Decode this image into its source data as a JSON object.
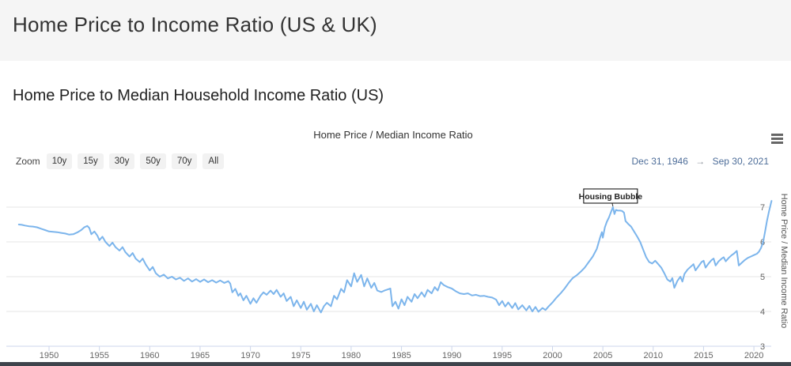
{
  "page": {
    "title": "Home Price to Income Ratio (US & UK)",
    "section_heading": "Home Price to Median Household Income Ratio (US)"
  },
  "chart": {
    "title": "Home Price / Median Income Ratio",
    "range_selector": {
      "zoom_label": "Zoom",
      "buttons": [
        "10y",
        "15y",
        "30y",
        "50y",
        "70y",
        "All"
      ],
      "from": "Dec 31, 1946",
      "arrow": "→",
      "to": "Sep 30, 2021"
    }
  },
  "colors": {
    "line": "#7cb5ec",
    "gridline": "#e6e6e6",
    "axis_line": "#ccd6eb",
    "tick_label": "#666666",
    "date_text": "#4d6d99",
    "header_band": "#f5f5f5",
    "bottom_bar": "#3e434b"
  },
  "chart_data": {
    "type": "line",
    "title": "Home Price / Median Income Ratio",
    "xlabel": "",
    "ylabel": "Home Price / Median Income Ratio",
    "legend": "none",
    "grid": "horizontal",
    "x_ticks": [
      1950,
      1955,
      1960,
      1965,
      1970,
      1975,
      1980,
      1985,
      1990,
      1995,
      2000,
      2005,
      2010,
      2015,
      2020
    ],
    "y_ticks": [
      3,
      4,
      5,
      6,
      7
    ],
    "xlim": [
      1946.5,
      2022.3
    ],
    "ylim": [
      2.9,
      7.7
    ],
    "annotations": [
      {
        "label": "Housing Bubble",
        "x": 2006.0,
        "y": 7.0
      }
    ],
    "series": [
      {
        "name": "Home Price / Median Income Ratio",
        "points": [
          [
            1947.0,
            6.5
          ],
          [
            1947.3,
            6.49
          ],
          [
            1947.6,
            6.47
          ],
          [
            1948.0,
            6.45
          ],
          [
            1948.4,
            6.44
          ],
          [
            1948.8,
            6.42
          ],
          [
            1949.2,
            6.38
          ],
          [
            1949.6,
            6.34
          ],
          [
            1950.0,
            6.3
          ],
          [
            1950.4,
            6.29
          ],
          [
            1950.8,
            6.28
          ],
          [
            1951.2,
            6.26
          ],
          [
            1951.6,
            6.24
          ],
          [
            1952.0,
            6.21
          ],
          [
            1952.4,
            6.22
          ],
          [
            1952.8,
            6.27
          ],
          [
            1953.2,
            6.34
          ],
          [
            1953.5,
            6.42
          ],
          [
            1953.8,
            6.46
          ],
          [
            1954.0,
            6.4
          ],
          [
            1954.2,
            6.22
          ],
          [
            1954.5,
            6.3
          ],
          [
            1954.8,
            6.18
          ],
          [
            1955.0,
            6.05
          ],
          [
            1955.3,
            6.15
          ],
          [
            1955.6,
            6.0
          ],
          [
            1956.0,
            5.88
          ],
          [
            1956.3,
            5.98
          ],
          [
            1956.6,
            5.85
          ],
          [
            1957.0,
            5.75
          ],
          [
            1957.3,
            5.85
          ],
          [
            1957.6,
            5.7
          ],
          [
            1958.0,
            5.58
          ],
          [
            1958.3,
            5.68
          ],
          [
            1958.6,
            5.52
          ],
          [
            1959.0,
            5.42
          ],
          [
            1959.3,
            5.52
          ],
          [
            1959.6,
            5.35
          ],
          [
            1960.0,
            5.18
          ],
          [
            1960.3,
            5.28
          ],
          [
            1960.6,
            5.1
          ],
          [
            1961.0,
            5.0
          ],
          [
            1961.4,
            5.06
          ],
          [
            1961.8,
            4.95
          ],
          [
            1962.2,
            5.0
          ],
          [
            1962.6,
            4.92
          ],
          [
            1963.0,
            4.97
          ],
          [
            1963.4,
            4.88
          ],
          [
            1963.8,
            4.95
          ],
          [
            1964.2,
            4.86
          ],
          [
            1964.6,
            4.93
          ],
          [
            1965.0,
            4.85
          ],
          [
            1965.4,
            4.92
          ],
          [
            1965.8,
            4.84
          ],
          [
            1966.2,
            4.9
          ],
          [
            1966.6,
            4.83
          ],
          [
            1967.0,
            4.89
          ],
          [
            1967.4,
            4.82
          ],
          [
            1967.8,
            4.87
          ],
          [
            1968.0,
            4.8
          ],
          [
            1968.2,
            4.55
          ],
          [
            1968.5,
            4.65
          ],
          [
            1968.8,
            4.45
          ],
          [
            1969.0,
            4.52
          ],
          [
            1969.3,
            4.32
          ],
          [
            1969.6,
            4.45
          ],
          [
            1970.0,
            4.22
          ],
          [
            1970.3,
            4.38
          ],
          [
            1970.6,
            4.25
          ],
          [
            1971.0,
            4.45
          ],
          [
            1971.3,
            4.55
          ],
          [
            1971.6,
            4.48
          ],
          [
            1972.0,
            4.6
          ],
          [
            1972.3,
            4.5
          ],
          [
            1972.6,
            4.62
          ],
          [
            1973.0,
            4.42
          ],
          [
            1973.3,
            4.52
          ],
          [
            1973.6,
            4.3
          ],
          [
            1974.0,
            4.42
          ],
          [
            1974.3,
            4.15
          ],
          [
            1974.6,
            4.32
          ],
          [
            1975.0,
            4.1
          ],
          [
            1975.3,
            4.28
          ],
          [
            1975.6,
            4.05
          ],
          [
            1976.0,
            4.22
          ],
          [
            1976.3,
            4.0
          ],
          [
            1976.6,
            4.18
          ],
          [
            1977.0,
            3.97
          ],
          [
            1977.3,
            4.15
          ],
          [
            1977.6,
            4.25
          ],
          [
            1978.0,
            4.15
          ],
          [
            1978.3,
            4.45
          ],
          [
            1978.6,
            4.35
          ],
          [
            1979.0,
            4.65
          ],
          [
            1979.3,
            4.55
          ],
          [
            1979.6,
            4.9
          ],
          [
            1980.0,
            4.72
          ],
          [
            1980.3,
            5.1
          ],
          [
            1980.6,
            4.85
          ],
          [
            1981.0,
            5.05
          ],
          [
            1981.3,
            4.72
          ],
          [
            1981.6,
            4.95
          ],
          [
            1982.0,
            4.68
          ],
          [
            1982.3,
            4.82
          ],
          [
            1982.6,
            4.6
          ],
          [
            1983.0,
            4.56
          ],
          [
            1983.3,
            4.6
          ],
          [
            1983.6,
            4.63
          ],
          [
            1983.9,
            4.66
          ],
          [
            1984.1,
            4.15
          ],
          [
            1984.4,
            4.28
          ],
          [
            1984.7,
            4.08
          ],
          [
            1985.0,
            4.35
          ],
          [
            1985.3,
            4.18
          ],
          [
            1985.6,
            4.42
          ],
          [
            1986.0,
            4.28
          ],
          [
            1986.3,
            4.5
          ],
          [
            1986.6,
            4.38
          ],
          [
            1987.0,
            4.55
          ],
          [
            1987.3,
            4.42
          ],
          [
            1987.6,
            4.62
          ],
          [
            1988.0,
            4.52
          ],
          [
            1988.3,
            4.7
          ],
          [
            1988.6,
            4.6
          ],
          [
            1988.9,
            4.84
          ],
          [
            1989.2,
            4.76
          ],
          [
            1989.6,
            4.7
          ],
          [
            1990.0,
            4.66
          ],
          [
            1990.4,
            4.58
          ],
          [
            1990.8,
            4.52
          ],
          [
            1991.2,
            4.5
          ],
          [
            1991.6,
            4.52
          ],
          [
            1992.0,
            4.46
          ],
          [
            1992.4,
            4.48
          ],
          [
            1992.8,
            4.44
          ],
          [
            1993.2,
            4.45
          ],
          [
            1993.6,
            4.42
          ],
          [
            1994.0,
            4.4
          ],
          [
            1994.4,
            4.34
          ],
          [
            1994.7,
            4.18
          ],
          [
            1995.0,
            4.3
          ],
          [
            1995.3,
            4.14
          ],
          [
            1995.6,
            4.26
          ],
          [
            1996.0,
            4.1
          ],
          [
            1996.3,
            4.24
          ],
          [
            1996.6,
            4.06
          ],
          [
            1997.0,
            4.18
          ],
          [
            1997.4,
            4.03
          ],
          [
            1997.7,
            4.16
          ],
          [
            1998.0,
            4.0
          ],
          [
            1998.3,
            4.13
          ],
          [
            1998.6,
            3.99
          ],
          [
            1999.0,
            4.1
          ],
          [
            1999.3,
            4.04
          ],
          [
            1999.6,
            4.14
          ],
          [
            2000.0,
            4.26
          ],
          [
            2000.4,
            4.4
          ],
          [
            2000.8,
            4.52
          ],
          [
            2001.2,
            4.66
          ],
          [
            2001.6,
            4.82
          ],
          [
            2002.0,
            4.96
          ],
          [
            2002.4,
            5.04
          ],
          [
            2002.8,
            5.14
          ],
          [
            2003.2,
            5.26
          ],
          [
            2003.6,
            5.42
          ],
          [
            2004.0,
            5.58
          ],
          [
            2004.4,
            5.8
          ],
          [
            2004.7,
            6.1
          ],
          [
            2004.9,
            6.28
          ],
          [
            2005.0,
            6.12
          ],
          [
            2005.2,
            6.42
          ],
          [
            2005.4,
            6.58
          ],
          [
            2005.6,
            6.7
          ],
          [
            2005.8,
            6.85
          ],
          [
            2006.0,
            7.0
          ],
          [
            2006.15,
            6.8
          ],
          [
            2006.3,
            6.92
          ],
          [
            2006.5,
            6.9
          ],
          [
            2006.7,
            6.9
          ],
          [
            2006.9,
            6.89
          ],
          [
            2007.1,
            6.84
          ],
          [
            2007.25,
            6.6
          ],
          [
            2007.5,
            6.52
          ],
          [
            2007.8,
            6.44
          ],
          [
            2008.1,
            6.3
          ],
          [
            2008.4,
            6.16
          ],
          [
            2008.7,
            6.0
          ],
          [
            2009.0,
            5.78
          ],
          [
            2009.3,
            5.56
          ],
          [
            2009.6,
            5.42
          ],
          [
            2009.9,
            5.38
          ],
          [
            2010.2,
            5.46
          ],
          [
            2010.5,
            5.36
          ],
          [
            2010.8,
            5.26
          ],
          [
            2011.1,
            5.1
          ],
          [
            2011.4,
            4.92
          ],
          [
            2011.7,
            4.86
          ],
          [
            2011.9,
            4.96
          ],
          [
            2012.1,
            4.68
          ],
          [
            2012.4,
            4.88
          ],
          [
            2012.7,
            5.0
          ],
          [
            2012.9,
            4.86
          ],
          [
            2013.1,
            5.08
          ],
          [
            2013.4,
            5.2
          ],
          [
            2013.7,
            5.28
          ],
          [
            2014.0,
            5.36
          ],
          [
            2014.2,
            5.18
          ],
          [
            2014.5,
            5.3
          ],
          [
            2014.8,
            5.42
          ],
          [
            2015.0,
            5.46
          ],
          [
            2015.2,
            5.26
          ],
          [
            2015.5,
            5.38
          ],
          [
            2015.8,
            5.48
          ],
          [
            2016.0,
            5.52
          ],
          [
            2016.2,
            5.32
          ],
          [
            2016.5,
            5.44
          ],
          [
            2016.8,
            5.52
          ],
          [
            2017.0,
            5.56
          ],
          [
            2017.2,
            5.44
          ],
          [
            2017.5,
            5.54
          ],
          [
            2017.8,
            5.62
          ],
          [
            2018.0,
            5.66
          ],
          [
            2018.3,
            5.74
          ],
          [
            2018.5,
            5.32
          ],
          [
            2018.8,
            5.4
          ],
          [
            2019.1,
            5.48
          ],
          [
            2019.4,
            5.54
          ],
          [
            2019.7,
            5.58
          ],
          [
            2020.0,
            5.62
          ],
          [
            2020.3,
            5.66
          ],
          [
            2020.5,
            5.72
          ],
          [
            2020.7,
            5.82
          ],
          [
            2020.9,
            5.98
          ],
          [
            2021.1,
            6.28
          ],
          [
            2021.3,
            6.6
          ],
          [
            2021.5,
            6.88
          ],
          [
            2021.75,
            7.18
          ]
        ]
      }
    ]
  }
}
